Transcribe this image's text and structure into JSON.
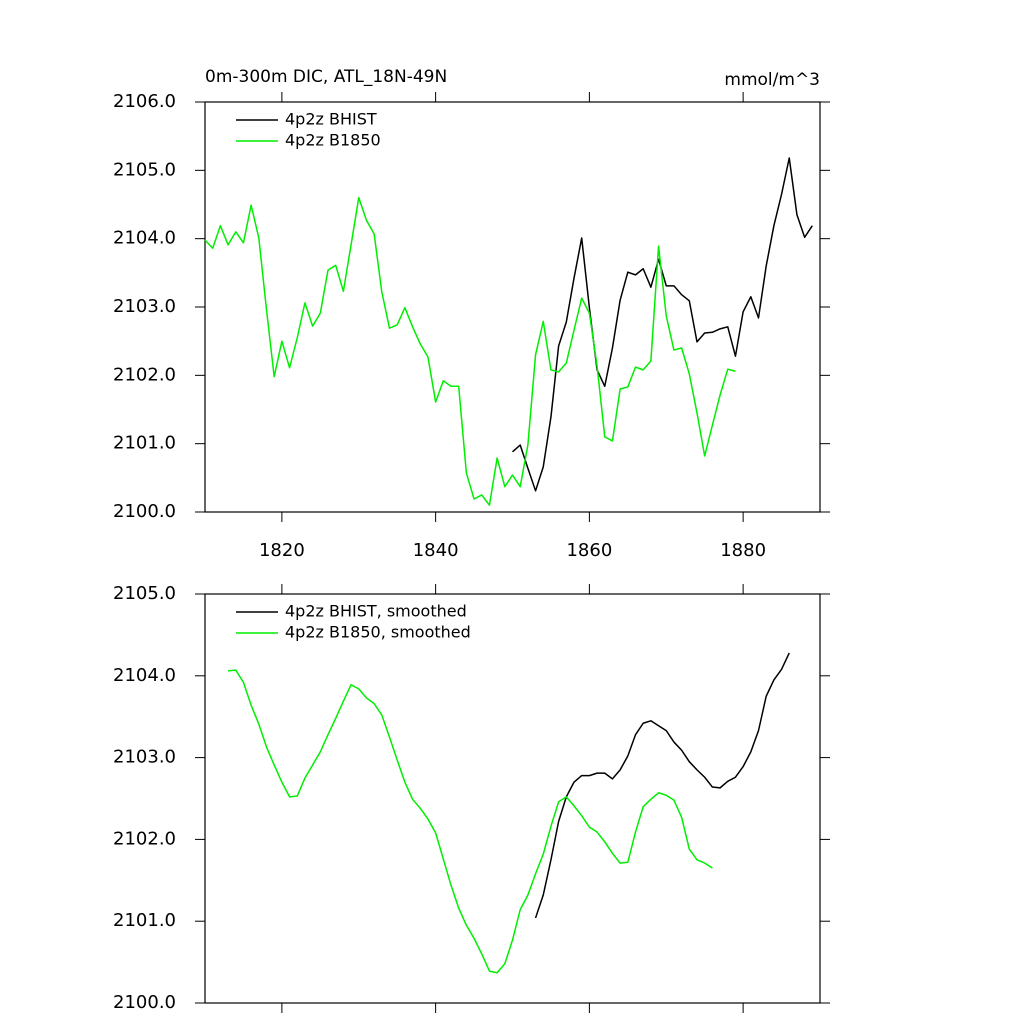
{
  "chart_data": [
    {
      "type": "line",
      "title": "0m-300m DIC, ATL_18N-49N",
      "units": "mmol/m^3",
      "xlim": [
        1810,
        1890
      ],
      "xticks": [
        1820,
        1840,
        1860,
        1880
      ],
      "xtick_labels": true,
      "ylim": [
        2100,
        2106
      ],
      "yticks": [
        {
          "value": 2100,
          "label": "2100.0"
        },
        {
          "value": 2101,
          "label": "2101.0"
        },
        {
          "value": 2102,
          "label": "2102.0"
        },
        {
          "value": 2103,
          "label": "2103.0"
        },
        {
          "value": 2104,
          "label": "2104.0"
        },
        {
          "value": 2105,
          "label": "2105.0"
        },
        {
          "value": 2106,
          "label": "2106.0"
        }
      ],
      "series": [
        {
          "name": "4p2z BHIST",
          "color": "#000000",
          "x": [
            1850,
            1851,
            1852,
            1853,
            1854,
            1855,
            1856,
            1857,
            1858,
            1859,
            1860,
            1861,
            1862,
            1863,
            1864,
            1865,
            1866,
            1867,
            1868,
            1869,
            1870,
            1871,
            1872,
            1873,
            1874,
            1875,
            1876,
            1877,
            1878,
            1879,
            1880,
            1881,
            1882,
            1883,
            1884,
            1885,
            1886,
            1887,
            1888,
            1889
          ],
          "values": [
            2100.88,
            2100.98,
            2100.64,
            2100.31,
            2100.66,
            2101.39,
            2102.43,
            2102.78,
            2103.42,
            2104.01,
            2102.99,
            2102.08,
            2101.84,
            2102.4,
            2103.1,
            2103.51,
            2103.47,
            2103.56,
            2103.29,
            2103.7,
            2103.31,
            2103.31,
            2103.18,
            2103.09,
            2102.49,
            2102.62,
            2102.63,
            2102.68,
            2102.71,
            2102.28,
            2102.93,
            2103.15,
            2102.84,
            2103.6,
            2104.19,
            2104.65,
            2105.18,
            2104.35,
            2104.02,
            2104.19
          ]
        },
        {
          "name": "4p2z B1850",
          "color": "#00ee00",
          "x": [
            1810,
            1811,
            1812,
            1813,
            1814,
            1815,
            1816,
            1817,
            1818,
            1819,
            1820,
            1821,
            1822,
            1823,
            1824,
            1825,
            1826,
            1827,
            1828,
            1829,
            1830,
            1831,
            1832,
            1833,
            1834,
            1835,
            1836,
            1837,
            1838,
            1839,
            1840,
            1841,
            1842,
            1843,
            1844,
            1845,
            1846,
            1847,
            1848,
            1849,
            1850,
            1851,
            1852,
            1853,
            1854,
            1855,
            1856,
            1857,
            1858,
            1859,
            1860,
            1861,
            1862,
            1863,
            1864,
            1865,
            1866,
            1867,
            1868,
            1869,
            1870,
            1871,
            1872,
            1873,
            1874,
            1875,
            1876,
            1877,
            1878,
            1879
          ],
          "values": [
            2103.98,
            2103.86,
            2104.19,
            2103.91,
            2104.1,
            2103.94,
            2104.49,
            2104.01,
            2102.96,
            2101.98,
            2102.5,
            2102.11,
            2102.55,
            2103.06,
            2102.72,
            2102.91,
            2103.54,
            2103.61,
            2103.23,
            2103.91,
            2104.6,
            2104.27,
            2104.07,
            2103.22,
            2102.69,
            2102.74,
            2102.99,
            2102.71,
            2102.46,
            2102.27,
            2101.61,
            2101.92,
            2101.84,
            2101.84,
            2100.57,
            2100.19,
            2100.25,
            2100.1,
            2100.79,
            2100.37,
            2100.54,
            2100.37,
            2100.98,
            2102.3,
            2102.79,
            2102.08,
            2102.05,
            2102.18,
            2102.66,
            2103.13,
            2102.91,
            2102.14,
            2101.1,
            2101.04,
            2101.8,
            2101.83,
            2102.12,
            2102.08,
            2102.21,
            2103.89,
            2102.87,
            2102.37,
            2102.4,
            2102.02,
            2101.45,
            2100.82,
            2101.27,
            2101.71,
            2102.09,
            2102.06
          ]
        }
      ]
    },
    {
      "type": "line",
      "xlim": [
        1810,
        1890
      ],
      "xticks": [
        1820,
        1840,
        1860,
        1880
      ],
      "xtick_labels": false,
      "ylim": [
        2100,
        2105
      ],
      "yticks": [
        {
          "value": 2100,
          "label": "2100.0"
        },
        {
          "value": 2101,
          "label": "2101.0"
        },
        {
          "value": 2102,
          "label": "2102.0"
        },
        {
          "value": 2103,
          "label": "2103.0"
        },
        {
          "value": 2104,
          "label": "2104.0"
        },
        {
          "value": 2105,
          "label": "2105.0"
        }
      ],
      "series": [
        {
          "name": "4p2z BHIST, smoothed",
          "color": "#000000",
          "x": [
            1853,
            1854,
            1855,
            1856,
            1857,
            1858,
            1859,
            1860,
            1861,
            1862,
            1863,
            1864,
            1865,
            1866,
            1867,
            1868,
            1869,
            1870,
            1871,
            1872,
            1873,
            1874,
            1875,
            1876,
            1877,
            1878,
            1879,
            1880,
            1881,
            1882,
            1883,
            1884,
            1885,
            1886
          ],
          "values": [
            2101.04,
            2101.32,
            2101.75,
            2102.22,
            2102.52,
            2102.7,
            2102.78,
            2102.78,
            2102.81,
            2102.81,
            2102.74,
            2102.85,
            2103.02,
            2103.28,
            2103.42,
            2103.45,
            2103.39,
            2103.33,
            2103.19,
            2103.09,
            2102.95,
            2102.85,
            2102.76,
            2102.64,
            2102.63,
            2102.71,
            2102.76,
            2102.89,
            2103.07,
            2103.33,
            2103.75,
            2103.95,
            2104.08,
            2104.28
          ]
        },
        {
          "name": "4p2z B1850, smoothed",
          "color": "#00ee00",
          "x": [
            1813,
            1814,
            1815,
            1816,
            1817,
            1818,
            1819,
            1820,
            1821,
            1822,
            1823,
            1824,
            1825,
            1826,
            1827,
            1828,
            1829,
            1830,
            1831,
            1832,
            1833,
            1834,
            1835,
            1836,
            1837,
            1838,
            1839,
            1840,
            1841,
            1842,
            1843,
            1844,
            1845,
            1846,
            1847,
            1848,
            1849,
            1850,
            1851,
            1852,
            1853,
            1854,
            1855,
            1856,
            1857,
            1858,
            1859,
            1860,
            1861,
            1862,
            1863,
            1864,
            1865,
            1866,
            1867,
            1868,
            1869,
            1870,
            1871,
            1872,
            1873,
            1874,
            1875,
            1876
          ],
          "values": [
            2104.06,
            2104.07,
            2103.92,
            2103.64,
            2103.41,
            2103.13,
            2102.91,
            2102.7,
            2102.52,
            2102.53,
            2102.75,
            2102.91,
            2103.07,
            2103.28,
            2103.48,
            2103.69,
            2103.89,
            2103.84,
            2103.73,
            2103.66,
            2103.52,
            2103.25,
            2102.97,
            2102.7,
            2102.49,
            2102.38,
            2102.25,
            2102.08,
            2101.76,
            2101.44,
            2101.16,
            2100.95,
            2100.79,
            2100.6,
            2100.39,
            2100.37,
            2100.48,
            2100.77,
            2101.14,
            2101.32,
            2101.58,
            2101.82,
            2102.16,
            2102.46,
            2102.52,
            2102.41,
            2102.29,
            2102.15,
            2102.09,
            2101.97,
            2101.83,
            2101.71,
            2101.72,
            2102.09,
            2102.4,
            2102.49,
            2102.57,
            2102.54,
            2102.48,
            2102.27,
            2101.88,
            2101.75,
            2101.71,
            2101.65
          ]
        }
      ]
    }
  ]
}
